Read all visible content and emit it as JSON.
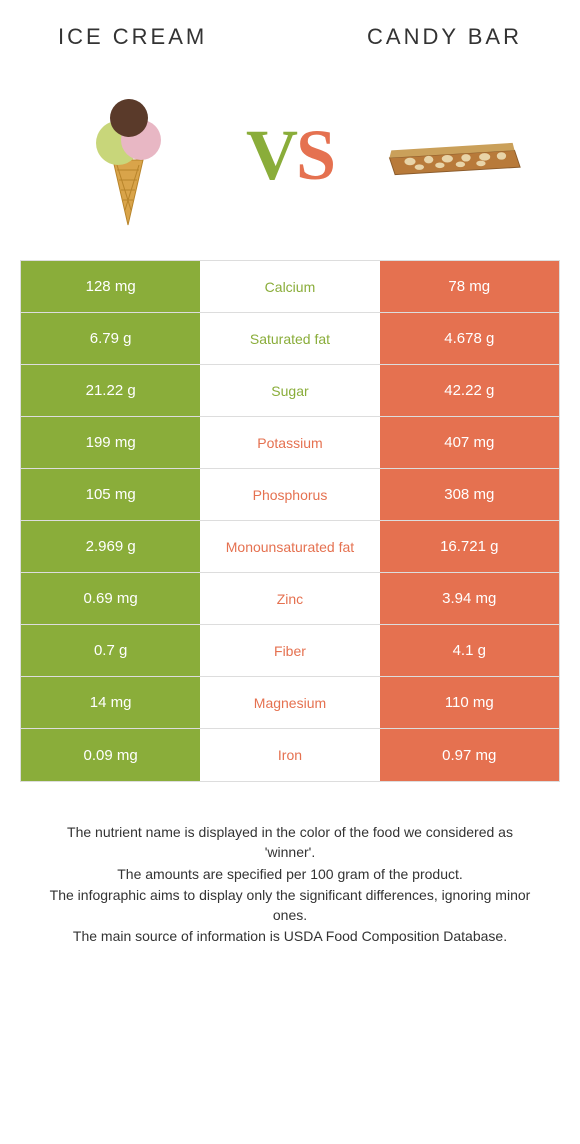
{
  "left_title": "ICE CREAM",
  "right_title": "CANDY BAR",
  "vs_v": "V",
  "vs_s": "S",
  "colors": {
    "left_bg": "#8aad3a",
    "right_bg": "#e57150",
    "left_text": "#8aad3a",
    "right_text": "#e57150",
    "border": "#dddddd",
    "body_text": "#333333"
  },
  "rows": [
    {
      "left": "128 mg",
      "mid": "Calcium",
      "right": "78 mg",
      "winner": "left"
    },
    {
      "left": "6.79 g",
      "mid": "Saturated fat",
      "right": "4.678 g",
      "winner": "left"
    },
    {
      "left": "21.22 g",
      "mid": "Sugar",
      "right": "42.22 g",
      "winner": "left"
    },
    {
      "left": "199 mg",
      "mid": "Potassium",
      "right": "407 mg",
      "winner": "right"
    },
    {
      "left": "105 mg",
      "mid": "Phosphorus",
      "right": "308 mg",
      "winner": "right"
    },
    {
      "left": "2.969 g",
      "mid": "Monounsaturated fat",
      "right": "16.721 g",
      "winner": "right"
    },
    {
      "left": "0.69 mg",
      "mid": "Zinc",
      "right": "3.94 mg",
      "winner": "right"
    },
    {
      "left": "0.7 g",
      "mid": "Fiber",
      "right": "4.1 g",
      "winner": "right"
    },
    {
      "left": "14 mg",
      "mid": "Magnesium",
      "right": "110 mg",
      "winner": "right"
    },
    {
      "left": "0.09 mg",
      "mid": "Iron",
      "right": "0.97 mg",
      "winner": "right"
    }
  ],
  "footer": [
    "The nutrient name is displayed in the color of the food we considered as 'winner'.",
    "The amounts are specified per 100 gram of the product.",
    "The infographic aims to display only the significant differences, ignoring minor ones.",
    "The main source of information is USDA Food Composition Database."
  ]
}
